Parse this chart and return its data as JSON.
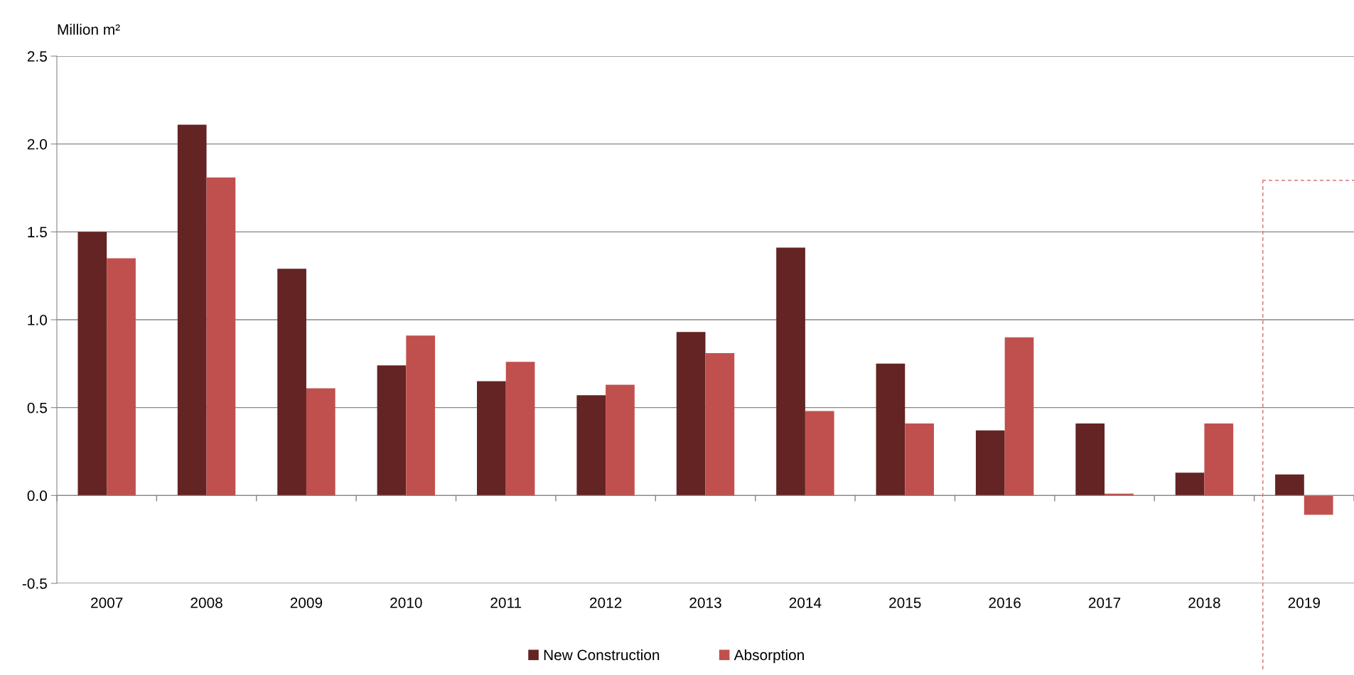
{
  "chart_data": {
    "type": "bar",
    "ylabel": "Million m²",
    "categories": [
      "2007",
      "2008",
      "2009",
      "2010",
      "2011",
      "2012",
      "2013",
      "2014",
      "2015",
      "2016",
      "2017",
      "2018",
      "2019"
    ],
    "series": [
      {
        "name": "New Construction",
        "color": "#632423",
        "values": [
          1.5,
          2.11,
          1.29,
          0.74,
          0.65,
          0.57,
          0.93,
          1.41,
          0.75,
          0.37,
          0.41,
          0.13,
          0.12
        ]
      },
      {
        "name": "Absorption",
        "color": "#c0504d",
        "values": [
          1.35,
          1.81,
          0.61,
          0.91,
          0.76,
          0.63,
          0.81,
          0.48,
          0.41,
          0.9,
          0.01,
          0.41,
          -0.11
        ]
      }
    ],
    "ylim": [
      -0.5,
      2.5
    ],
    "yticks": [
      {
        "value": -0.5,
        "label": "-0.5"
      },
      {
        "value": 0,
        "label": "0.0"
      },
      {
        "value": 0.5,
        "label": "0.5"
      },
      {
        "value": 1,
        "label": "1.0"
      },
      {
        "value": 1.5,
        "label": "1.5"
      },
      {
        "value": 2,
        "label": "2.0"
      },
      {
        "value": 2.5,
        "label": "2.5"
      }
    ],
    "grid": "y",
    "legend": "bottom"
  }
}
